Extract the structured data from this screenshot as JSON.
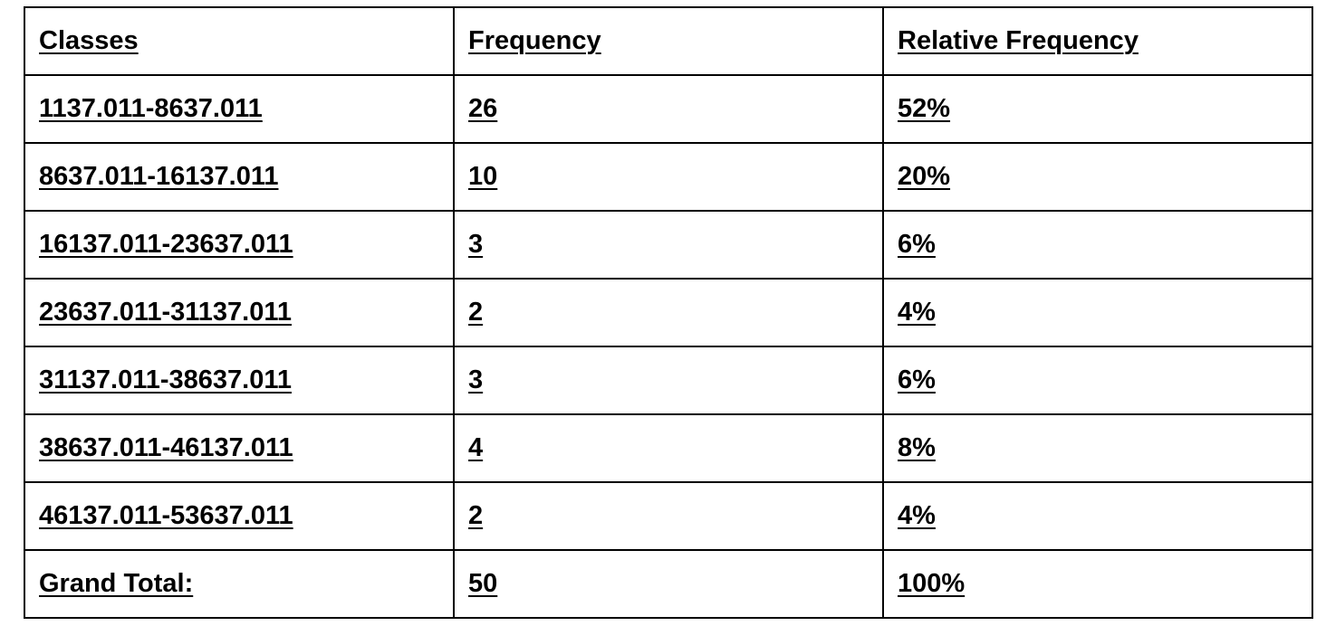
{
  "table": {
    "headers": [
      "Classes",
      "Frequency",
      "Relative Frequency"
    ],
    "rows": [
      {
        "class": "1137.011-8637.011",
        "frequency": "26",
        "relative": "52%"
      },
      {
        "class": "8637.011-16137.011",
        "frequency": "10",
        "relative": "20%"
      },
      {
        "class": "16137.011-23637.011",
        "frequency": "3",
        "relative": "6%"
      },
      {
        "class": "23637.011-31137.011",
        "frequency": "2",
        "relative": "4%"
      },
      {
        "class": "31137.011-38637.011",
        "frequency": "3",
        "relative": "6%"
      },
      {
        "class": "38637.011-46137.011",
        "frequency": "4",
        "relative": "8%"
      },
      {
        "class": "46137.011-53637.011",
        "frequency": "2",
        "relative": "4%"
      }
    ],
    "total": {
      "label": "Grand Total:",
      "frequency": "50",
      "relative": "100%"
    }
  }
}
